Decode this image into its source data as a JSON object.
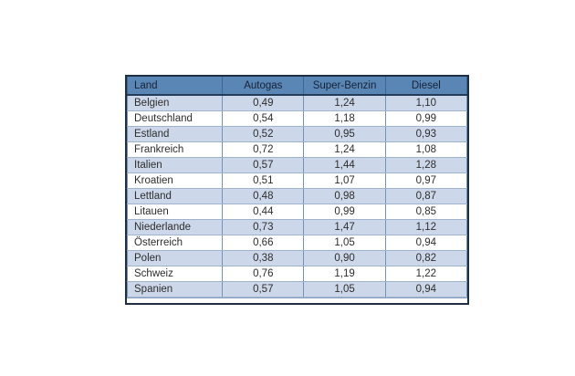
{
  "chart_data": {
    "type": "table",
    "columns": [
      "Land",
      "Autogas",
      "Super-Benzin",
      "Diesel"
    ],
    "rows": [
      [
        "Belgien",
        "0,49",
        "1,24",
        "1,10"
      ],
      [
        "Deutschland",
        "0,54",
        "1,18",
        "0,99"
      ],
      [
        "Estland",
        "0,52",
        "0,95",
        "0,93"
      ],
      [
        "Frankreich",
        "0,72",
        "1,24",
        "1,08"
      ],
      [
        "Italien",
        "0,57",
        "1,44",
        "1,28"
      ],
      [
        "Kroatien",
        "0,51",
        "1,07",
        "0,97"
      ],
      [
        "Lettland",
        "0,48",
        "0,98",
        "0,87"
      ],
      [
        "Litauen",
        "0,44",
        "0,99",
        "0,85"
      ],
      [
        "Niederlande",
        "0,73",
        "1,47",
        "1,12"
      ],
      [
        "Österreich",
        "0,66",
        "1,05",
        "0,94"
      ],
      [
        "Polen",
        "0,38",
        "0,90",
        "0,82"
      ],
      [
        "Schweiz",
        "0,76",
        "1,19",
        "1,22"
      ],
      [
        "Spanien",
        "0,57",
        "1,05",
        "0,94"
      ]
    ],
    "layout_hints": {
      "striping": "odd rows light blue, even rows white",
      "first_column_align": "left",
      "value_columns_align": "center",
      "grid": "on"
    }
  },
  "colors": {
    "header_bg": "#5a86b5",
    "header_text": "#152238",
    "row_alt_bg": "#ccd7e9",
    "row_bg": "#ffffff",
    "cell_text": "#2e2e2e",
    "grid_vertical": "#7191b8",
    "grid_horizontal": "#9fb3cf",
    "outer_border": "#1f2f42"
  }
}
